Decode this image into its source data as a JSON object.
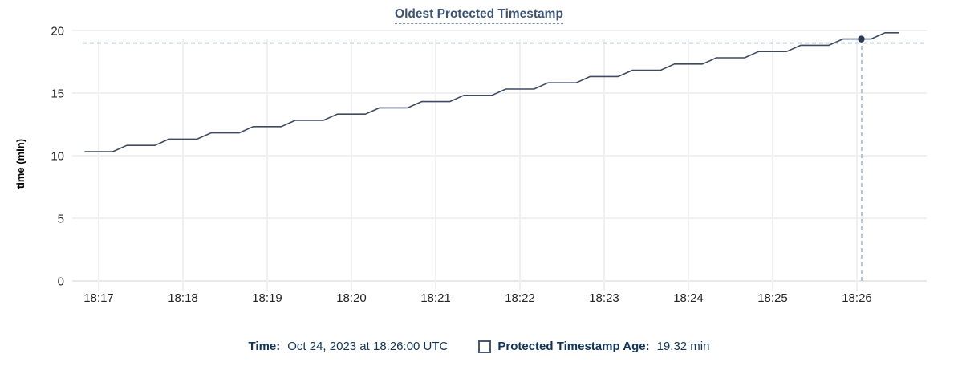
{
  "title": "Oldest Protected Timestamp",
  "legend": {
    "time_label": "Time:",
    "time_value": "Oct 24, 2023 at 18:26:00 UTC",
    "series_label": "Protected Timestamp Age:",
    "series_value": "19.32 min"
  },
  "colors": {
    "title_text": "#3c5474",
    "legend_text": "#10355a",
    "line": "#3e4a61",
    "hover_dot": "#2b3a50",
    "crosshair": "#a5b7c3",
    "gridline": "#f0f0f0",
    "zero_line": "#e9e9e9",
    "tick_text": "#242424",
    "swatch_border": "#475872"
  },
  "chart_data": {
    "type": "line",
    "title": "Oldest Protected Timestamp",
    "xlabel": "",
    "ylabel": "time (min)",
    "ylim": [
      0,
      20
    ],
    "y_ticks": [
      0,
      5,
      10,
      15,
      20
    ],
    "x_ticks": [
      "18:17",
      "18:18",
      "18:19",
      "18:20",
      "18:21",
      "18:22",
      "18:23",
      "18:24",
      "18:25",
      "18:26"
    ],
    "grid": true,
    "legend_position": "bottom",
    "line_style": "stepped-increase",
    "series": [
      {
        "name": "Protected Timestamp Age",
        "unit": "min",
        "points": [
          [
            "18:16:50",
            10.32
          ],
          [
            "18:17:00",
            10.32
          ],
          [
            "18:17:10",
            10.32
          ],
          [
            "18:17:20",
            10.82
          ],
          [
            "18:17:30",
            10.82
          ],
          [
            "18:17:40",
            10.82
          ],
          [
            "18:17:50",
            11.32
          ],
          [
            "18:18:00",
            11.32
          ],
          [
            "18:18:10",
            11.32
          ],
          [
            "18:18:20",
            11.82
          ],
          [
            "18:18:30",
            11.82
          ],
          [
            "18:18:40",
            11.82
          ],
          [
            "18:18:50",
            12.32
          ],
          [
            "18:19:00",
            12.32
          ],
          [
            "18:19:10",
            12.32
          ],
          [
            "18:19:20",
            12.82
          ],
          [
            "18:19:30",
            12.82
          ],
          [
            "18:19:40",
            12.82
          ],
          [
            "18:19:50",
            13.32
          ],
          [
            "18:20:00",
            13.32
          ],
          [
            "18:20:10",
            13.32
          ],
          [
            "18:20:20",
            13.82
          ],
          [
            "18:20:30",
            13.82
          ],
          [
            "18:20:40",
            13.82
          ],
          [
            "18:20:50",
            14.32
          ],
          [
            "18:21:00",
            14.32
          ],
          [
            "18:21:10",
            14.32
          ],
          [
            "18:21:20",
            14.82
          ],
          [
            "18:21:30",
            14.82
          ],
          [
            "18:21:40",
            14.82
          ],
          [
            "18:21:50",
            15.32
          ],
          [
            "18:22:00",
            15.32
          ],
          [
            "18:22:10",
            15.32
          ],
          [
            "18:22:20",
            15.82
          ],
          [
            "18:22:30",
            15.82
          ],
          [
            "18:22:40",
            15.82
          ],
          [
            "18:22:50",
            16.32
          ],
          [
            "18:23:00",
            16.32
          ],
          [
            "18:23:10",
            16.32
          ],
          [
            "18:23:20",
            16.82
          ],
          [
            "18:23:30",
            16.82
          ],
          [
            "18:23:40",
            16.82
          ],
          [
            "18:23:50",
            17.32
          ],
          [
            "18:24:00",
            17.32
          ],
          [
            "18:24:10",
            17.32
          ],
          [
            "18:24:20",
            17.82
          ],
          [
            "18:24:30",
            17.82
          ],
          [
            "18:24:40",
            17.82
          ],
          [
            "18:24:50",
            18.32
          ],
          [
            "18:25:00",
            18.32
          ],
          [
            "18:25:10",
            18.32
          ],
          [
            "18:25:20",
            18.82
          ],
          [
            "18:25:30",
            18.82
          ],
          [
            "18:25:40",
            18.82
          ],
          [
            "18:25:50",
            19.32
          ],
          [
            "18:26:00",
            19.32
          ],
          [
            "18:26:10",
            19.32
          ],
          [
            "18:26:20",
            19.82
          ],
          [
            "18:26:30",
            19.82
          ]
        ]
      }
    ],
    "hover_point": {
      "time": "18:26:00",
      "value": 19.32
    }
  }
}
